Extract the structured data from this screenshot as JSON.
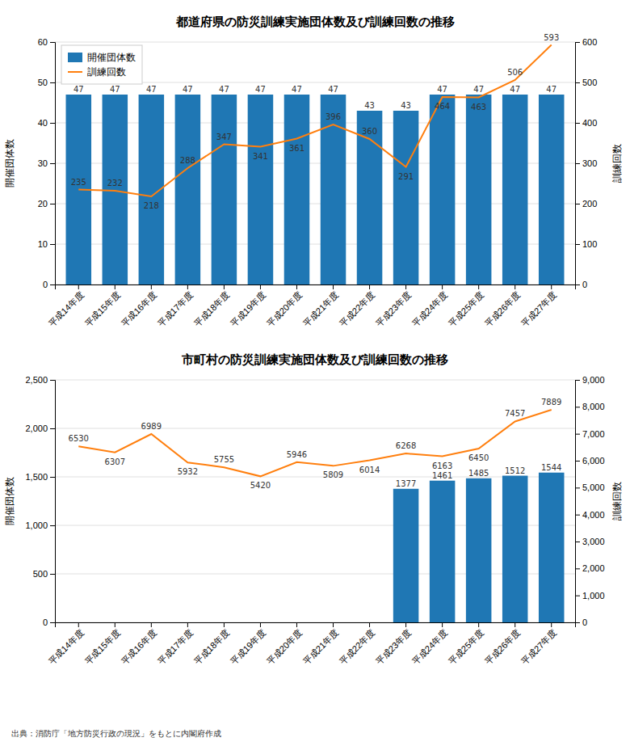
{
  "chart_data": [
    {
      "type": "bar",
      "title": "都道府県の防災訓練実施団体数及び訓練回数の推移",
      "categories": [
        "平成14年度",
        "平成15年度",
        "平成16年度",
        "平成17年度",
        "平成18年度",
        "平成19年度",
        "平成20年度",
        "平成21年度",
        "平成22年度",
        "平成23年度",
        "平成24年度",
        "平成25年度",
        "平成26年度",
        "平成27年度"
      ],
      "series": [
        {
          "name": "開催団体数",
          "type": "bar",
          "values": [
            47,
            47,
            47,
            47,
            47,
            47,
            47,
            47,
            43,
            43,
            47,
            47,
            47,
            47
          ]
        },
        {
          "name": "訓練回数",
          "type": "line",
          "axis": "y2",
          "values": [
            235,
            232,
            218,
            288,
            347,
            341,
            361,
            396,
            360,
            291,
            464,
            463,
            506,
            593
          ]
        }
      ],
      "ylabel": "開催団体数",
      "y2label": "訓練回数",
      "ylim": [
        0,
        60
      ],
      "yticks": [
        0,
        10,
        20,
        30,
        40,
        50,
        60
      ],
      "y2lim": [
        0,
        600
      ],
      "y2ticks": [
        0,
        100,
        200,
        300,
        400,
        500,
        600
      ],
      "grid": true,
      "legend": "upper left",
      "data_labels": true
    },
    {
      "type": "bar",
      "title": "市町村の防災訓練実施団体数及び訓練回数の推移",
      "categories": [
        "平成14年度",
        "平成15年度",
        "平成16年度",
        "平成17年度",
        "平成18年度",
        "平成19年度",
        "平成20年度",
        "平成21年度",
        "平成22年度",
        "平成23年度",
        "平成24年度",
        "平成25年度",
        "平成26年度",
        "平成27年度"
      ],
      "series": [
        {
          "name": "開催団体数",
          "type": "bar",
          "values": [
            0,
            0,
            0,
            0,
            0,
            0,
            0,
            0,
            0,
            1377,
            1461,
            1485,
            1512,
            1544
          ],
          "value_labels": [
            null,
            null,
            null,
            null,
            null,
            null,
            null,
            null,
            null,
            "1377",
            "1461",
            "1485",
            "1512",
            "1544"
          ]
        },
        {
          "name": "訓練回数",
          "type": "line",
          "axis": "y2",
          "values": [
            6530,
            6307,
            6989,
            5932,
            5755,
            5420,
            5946,
            5809,
            6014,
            6268,
            6163,
            6450,
            7457,
            7889
          ]
        }
      ],
      "ylabel": "開催団体数",
      "y2label": "訓練回数",
      "ylim": [
        0,
        2500
      ],
      "yticks": [
        0,
        500,
        {
          "value": 1000,
          "label": "1,000"
        },
        {
          "value": 1500,
          "label": "1,500"
        },
        {
          "value": 2000,
          "label": "2,000"
        },
        {
          "value": 2500,
          "label": "2,500"
        }
      ],
      "y2lim": [
        0,
        9000
      ],
      "y2ticks": [
        0,
        {
          "value": 1000,
          "label": "1,000"
        },
        {
          "value": 2000,
          "label": "2,000"
        },
        {
          "value": 3000,
          "label": "3,000"
        },
        {
          "value": 4000,
          "label": "4,000"
        },
        {
          "value": 5000,
          "label": "5,000"
        },
        {
          "value": 6000,
          "label": "6,000"
        },
        {
          "value": 7000,
          "label": "7,000"
        },
        {
          "value": 8000,
          "label": "8,000"
        },
        {
          "value": 9000,
          "label": "9,000"
        }
      ],
      "grid": true,
      "data_labels": true,
      "caption": "出典：消防庁「地方防災行政の現況」をもとに内閣府作成"
    }
  ]
}
